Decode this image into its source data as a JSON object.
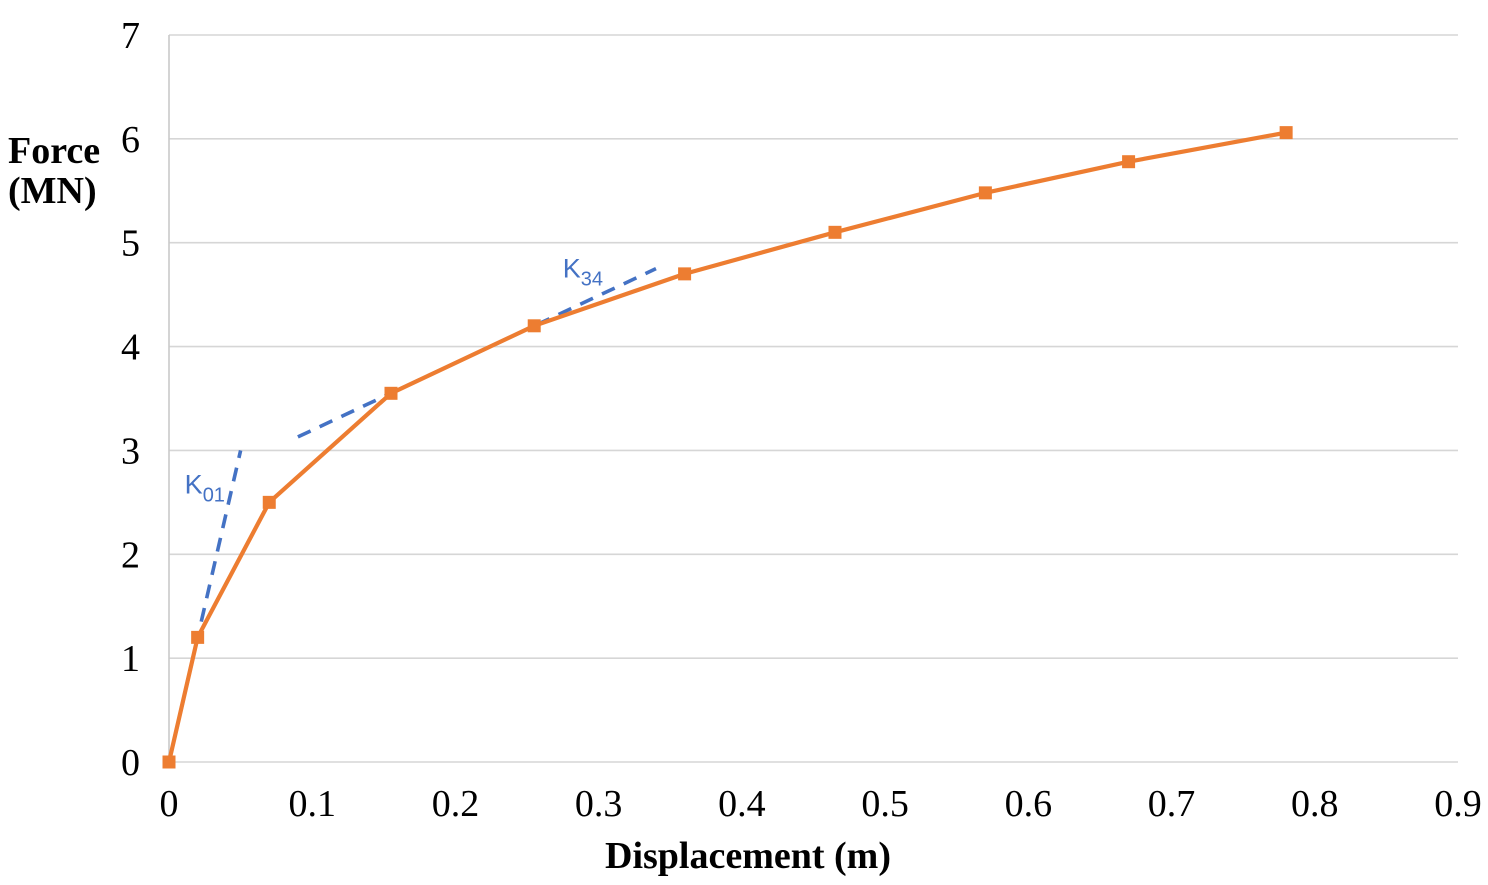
{
  "chart_data": {
    "type": "line",
    "title": "",
    "xlabel": "Displacement (m)",
    "ylabel_line1": "Force",
    "ylabel_line2": "(MN)",
    "xlim": [
      0,
      0.9
    ],
    "ylim": [
      0,
      7
    ],
    "grid": "horizontal",
    "legend": "none",
    "xticks": {
      "values": [
        0,
        0.1,
        0.2,
        0.3,
        0.4,
        0.5,
        0.6,
        0.7,
        0.8,
        0.9
      ],
      "labels": [
        "0",
        "0.1",
        "0.2",
        "0.3",
        "0.4",
        "0.5",
        "0.6",
        "0.7",
        "0.8",
        "0.9"
      ]
    },
    "yticks": {
      "values": [
        0,
        1,
        2,
        3,
        4,
        5,
        6,
        7
      ],
      "labels": [
        "0",
        "1",
        "2",
        "3",
        "4",
        "5",
        "6",
        "7"
      ]
    },
    "series": [
      {
        "name": "force-displacement-curve",
        "color": "#ED7D31",
        "marker": "square",
        "points": [
          [
            0,
            0
          ],
          [
            0.02,
            1.2
          ],
          [
            0.07,
            2.5
          ],
          [
            0.155,
            3.55
          ],
          [
            0.255,
            4.2
          ],
          [
            0.36,
            4.7
          ],
          [
            0.465,
            5.1
          ],
          [
            0.57,
            5.48
          ],
          [
            0.67,
            5.78
          ],
          [
            0.78,
            6.06
          ]
        ]
      }
    ],
    "stiffness_lines": [
      {
        "name": "K01-line",
        "color": "#4472C4",
        "style": "dashed",
        "points": [
          [
            0,
            0
          ],
          [
            0.05,
            3.0
          ]
        ]
      },
      {
        "name": "K34-line",
        "color": "#4472C4",
        "style": "dashed",
        "points": [
          [
            0.09,
            3.13
          ],
          [
            0.34,
            4.75
          ]
        ]
      }
    ],
    "annotations": [
      {
        "name": "K01-label",
        "text": "K",
        "sub": "01",
        "x": 0.025,
        "y": 2.7,
        "color": "#4472C4"
      },
      {
        "name": "K34-label",
        "text": "K",
        "sub": "34",
        "x": 0.289,
        "y": 4.78,
        "color": "#4472C4"
      }
    ],
    "colors": {
      "gridline": "#D6D6D6",
      "axis_line": "#C9C9C9",
      "series_orange": "#ED7D31",
      "dashed_blue": "#4472C4",
      "text": "#000000"
    }
  }
}
